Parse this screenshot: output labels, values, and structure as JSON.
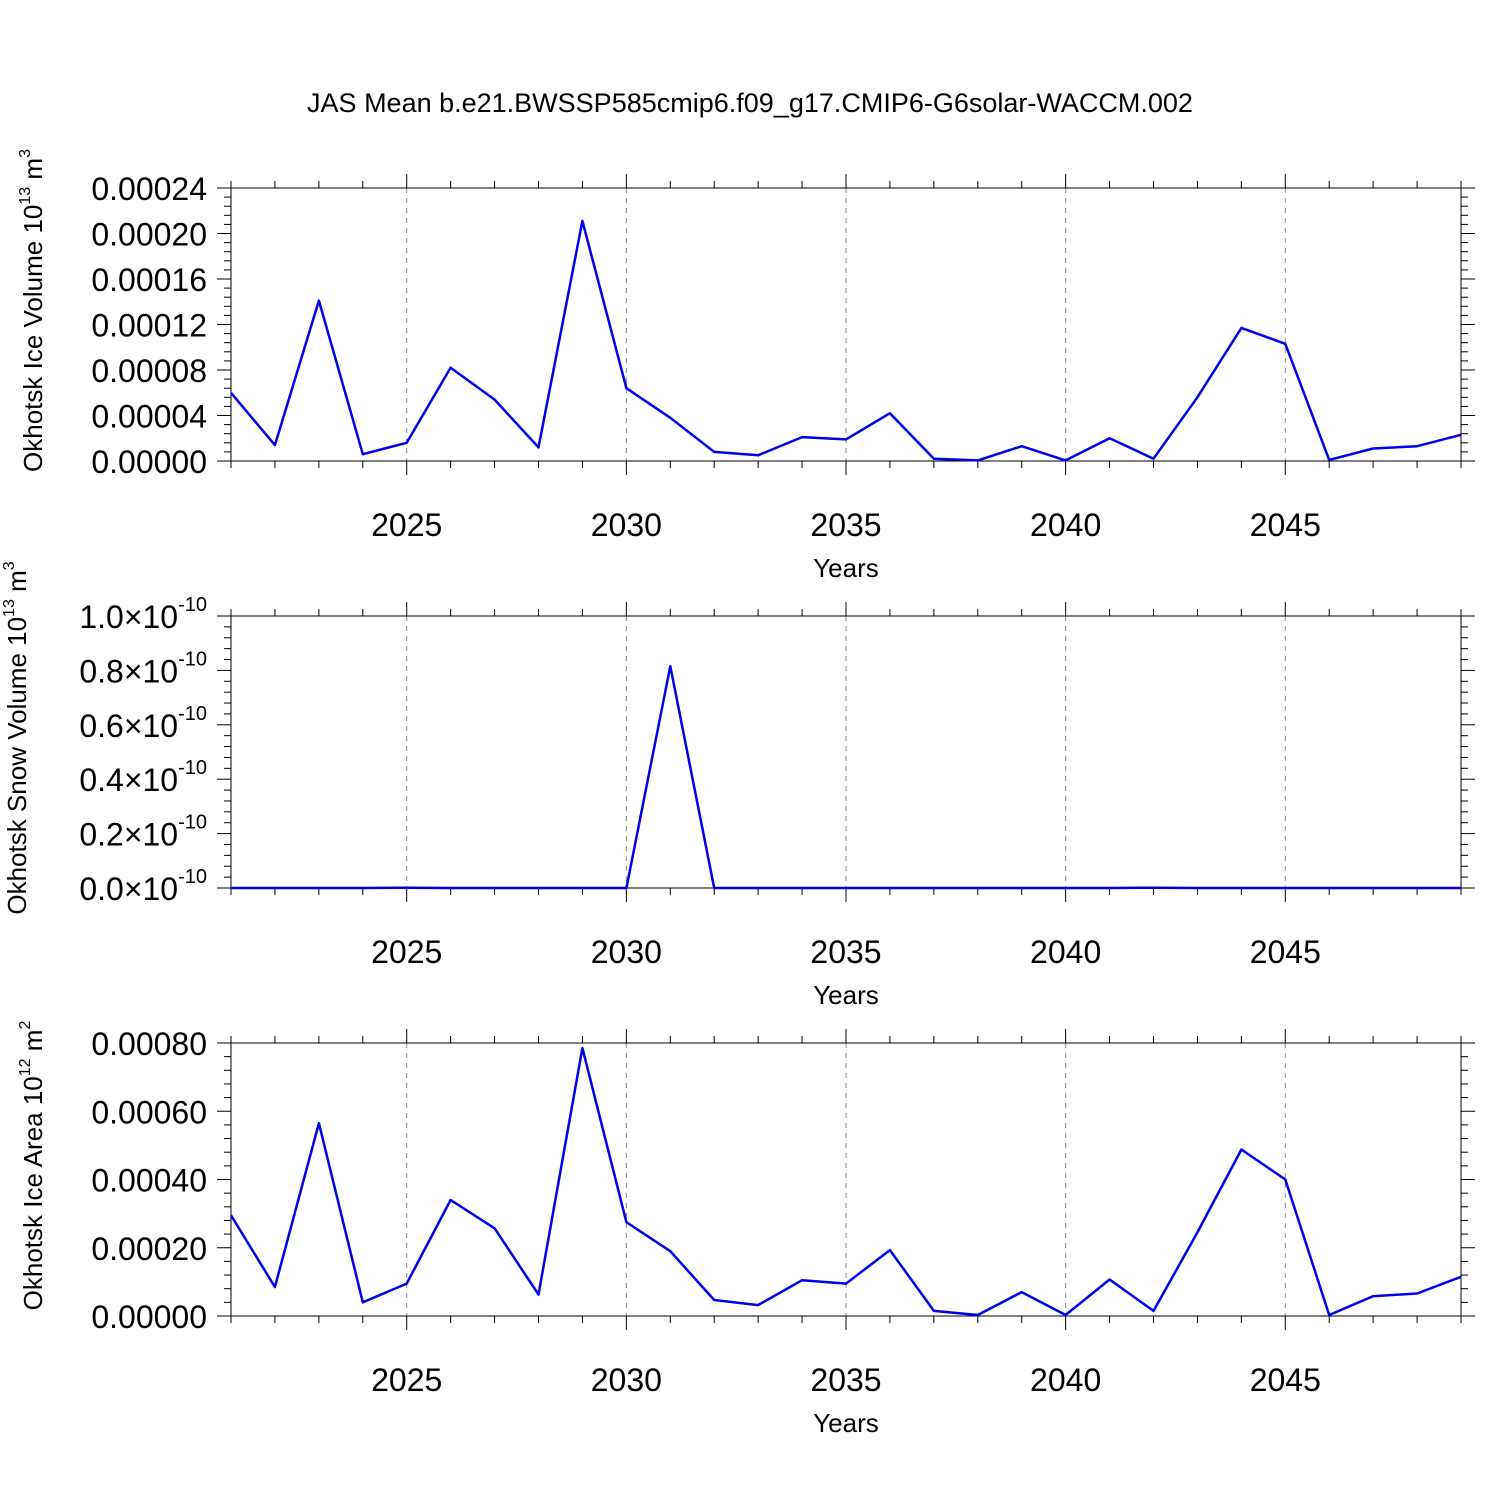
{
  "figure": {
    "title": "JAS Mean b.e21.BWSSP585cmip6.f09_g17.CMIP6-G6solar-WACCM.002"
  },
  "colors": {
    "series": "#0000ee",
    "grid": "#8a8a8a",
    "axis": "#000000"
  },
  "chart_data": [
    {
      "type": "line",
      "title": "",
      "xlabel": "Years",
      "ylabel": "Okhotsk Ice Volume 10^13 m^3",
      "ylabel_base": "Okhotsk Ice Volume 10",
      "ylabel_exp": "13",
      "ylabel_unit": "m",
      "ylabel_unit_exp": "3",
      "xlim": [
        2021,
        2049
      ],
      "ylim": [
        0,
        0.00024
      ],
      "xticks": [
        2025,
        2030,
        2035,
        2040,
        2045
      ],
      "xtick_labels": [
        "2025",
        "2030",
        "2035",
        "2040",
        "2045"
      ],
      "yticks": [
        0,
        4e-05,
        8e-05,
        0.00012,
        0.00016,
        0.0002,
        0.00024
      ],
      "ytick_labels": [
        "0.00000",
        "0.00004",
        "0.00008",
        "0.00012",
        "0.00016",
        "0.00020",
        "0.00024"
      ],
      "grid": "vertical dashed at major x ticks",
      "x": [
        2021,
        2022,
        2023,
        2024,
        2025,
        2026,
        2027,
        2028,
        2029,
        2030,
        2031,
        2032,
        2033,
        2034,
        2035,
        2036,
        2037,
        2038,
        2039,
        2040,
        2041,
        2042,
        2043,
        2044,
        2045,
        2046,
        2047,
        2048,
        2049
      ],
      "series": [
        {
          "values": [
            6e-05,
            1.4e-05,
            0.000141,
            6e-06,
            1.6e-05,
            8.2e-05,
            5.4e-05,
            1.2e-05,
            0.000211,
            6.4e-05,
            3.8e-05,
            8e-06,
            5e-06,
            2.1e-05,
            1.9e-05,
            4.2e-05,
            2e-06,
            5e-07,
            1.3e-05,
            5e-07,
            2e-05,
            2e-06,
            5.6e-05,
            0.000117,
            0.000103,
            1e-06,
            1.1e-05,
            1.3e-05,
            2.3e-05
          ]
        }
      ]
    },
    {
      "type": "line",
      "title": "",
      "xlabel": "Years",
      "ylabel": "Okhotsk Snow Volume 10^13 m^3",
      "ylabel_base": "Okhotsk Snow Volume 10",
      "ylabel_exp": "13",
      "ylabel_unit": "m",
      "ylabel_unit_exp": "3",
      "xlim": [
        2021,
        2049
      ],
      "ylim": [
        0,
        1e-10
      ],
      "xticks": [
        2025,
        2030,
        2035,
        2040,
        2045
      ],
      "xtick_labels": [
        "2025",
        "2030",
        "2035",
        "2040",
        "2045"
      ],
      "yticks": [
        0,
        2e-11,
        4e-11,
        6e-11,
        8e-11,
        1e-10
      ],
      "ytick_labels": [
        "0.0",
        "0.2",
        "0.4",
        "0.6",
        "0.8",
        "1.0"
      ],
      "ytick_suffix": "×10",
      "ytick_exponent": "-10",
      "grid": "vertical dashed at major x ticks",
      "x": [
        2021,
        2022,
        2023,
        2024,
        2025,
        2026,
        2027,
        2028,
        2029,
        2030,
        2031,
        2032,
        2033,
        2034,
        2035,
        2036,
        2037,
        2038,
        2039,
        2040,
        2041,
        2042,
        2043,
        2044,
        2045,
        2046,
        2047,
        2048,
        2049
      ],
      "series": [
        {
          "values": [
            0,
            0,
            0,
            0,
            1e-13,
            0,
            0,
            0,
            0,
            0,
            8.15e-11,
            0,
            0,
            0,
            0,
            0,
            0,
            0,
            0,
            0,
            0,
            1e-13,
            0,
            0,
            0,
            0,
            0,
            0,
            0
          ]
        }
      ]
    },
    {
      "type": "line",
      "title": "",
      "xlabel": "Years",
      "ylabel": "Okhotsk Ice Area 10^12 m^2",
      "ylabel_base": "Okhotsk Ice Area 10",
      "ylabel_exp": "12",
      "ylabel_unit": "m",
      "ylabel_unit_exp": "2",
      "xlim": [
        2021,
        2049
      ],
      "ylim": [
        0,
        0.0008
      ],
      "xticks": [
        2025,
        2030,
        2035,
        2040,
        2045
      ],
      "xtick_labels": [
        "2025",
        "2030",
        "2035",
        "2040",
        "2045"
      ],
      "yticks": [
        0,
        0.0002,
        0.0004,
        0.0006,
        0.0008
      ],
      "ytick_labels": [
        "0.00000",
        "0.00020",
        "0.00040",
        "0.00060",
        "0.00080"
      ],
      "grid": "vertical dashed at major x ticks",
      "x": [
        2021,
        2022,
        2023,
        2024,
        2025,
        2026,
        2027,
        2028,
        2029,
        2030,
        2031,
        2032,
        2033,
        2034,
        2035,
        2036,
        2037,
        2038,
        2039,
        2040,
        2041,
        2042,
        2043,
        2044,
        2045,
        2046,
        2047,
        2048,
        2049
      ],
      "series": [
        {
          "values": [
            0.000295,
            8.5e-05,
            0.000565,
            4e-05,
            9.5e-05,
            0.00034,
            0.000257,
            6.3e-05,
            0.000785,
            0.000275,
            0.00019,
            4.7e-05,
            3.2e-05,
            0.000105,
            9.5e-05,
            0.000193,
            1.5e-05,
            3e-06,
            7e-05,
            3e-06,
            0.000107,
            1.5e-05,
            0.000245,
            0.000488,
            0.0004,
            3e-06,
            5.8e-05,
            6.6e-05,
            0.000115
          ]
        }
      ]
    }
  ]
}
